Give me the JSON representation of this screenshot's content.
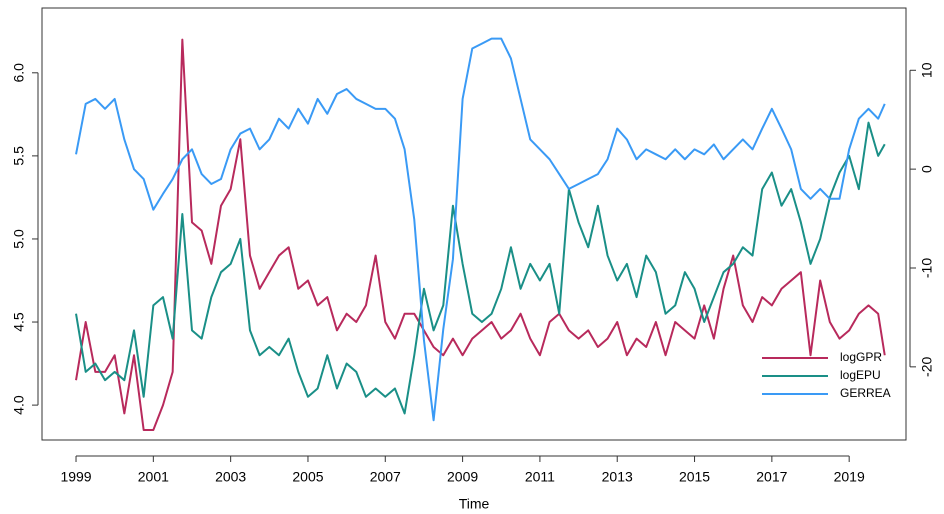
{
  "chart_data": {
    "type": "line",
    "x_label": "Time",
    "x": [
      1999.0,
      1999.25,
      1999.5,
      1999.75,
      2000.0,
      2000.25,
      2000.5,
      2000.75,
      2001.0,
      2001.25,
      2001.5,
      2001.75,
      2002.0,
      2002.25,
      2002.5,
      2002.75,
      2003.0,
      2003.25,
      2003.5,
      2003.75,
      2004.0,
      2004.25,
      2004.5,
      2004.75,
      2005.0,
      2005.25,
      2005.5,
      2005.75,
      2006.0,
      2006.25,
      2006.5,
      2006.75,
      2007.0,
      2007.25,
      2007.5,
      2007.75,
      2008.0,
      2008.25,
      2008.5,
      2008.75,
      2009.0,
      2009.25,
      2009.5,
      2009.75,
      2010.0,
      2010.25,
      2010.5,
      2010.75,
      2011.0,
      2011.25,
      2011.5,
      2011.75,
      2012.0,
      2012.25,
      2012.5,
      2012.75,
      2013.0,
      2013.25,
      2013.5,
      2013.75,
      2014.0,
      2014.25,
      2014.5,
      2014.75,
      2015.0,
      2015.25,
      2015.5,
      2015.75,
      2016.0,
      2016.25,
      2016.5,
      2016.75,
      2017.0,
      2017.25,
      2017.5,
      2017.75,
      2018.0,
      2018.25,
      2018.5,
      2018.75,
      2019.0,
      2019.25,
      2019.5,
      2019.75,
      2019.92
    ],
    "series": [
      {
        "name": "logGPR",
        "color": "#b82a5c",
        "values": [
          4.15,
          4.5,
          4.2,
          4.2,
          4.3,
          3.95,
          4.3,
          3.85,
          3.85,
          4.0,
          4.2,
          6.2,
          5.1,
          5.05,
          4.85,
          5.2,
          5.3,
          5.6,
          4.9,
          4.7,
          4.8,
          4.9,
          4.95,
          4.7,
          4.75,
          4.6,
          4.65,
          4.45,
          4.55,
          4.5,
          4.6,
          4.9,
          4.5,
          4.4,
          4.55,
          4.55,
          4.45,
          4.35,
          4.3,
          4.4,
          4.3,
          4.4,
          4.45,
          4.5,
          4.4,
          4.45,
          4.55,
          4.4,
          4.3,
          4.5,
          4.55,
          4.45,
          4.4,
          4.45,
          4.35,
          4.4,
          4.5,
          4.3,
          4.4,
          4.35,
          4.5,
          4.3,
          4.5,
          4.45,
          4.4,
          4.6,
          4.4,
          4.7,
          4.9,
          4.6,
          4.5,
          4.65,
          4.6,
          4.7,
          4.75,
          4.8,
          4.3,
          4.75,
          4.5,
          4.4,
          4.45,
          4.55,
          4.6,
          4.55,
          4.3
        ]
      },
      {
        "name": "logEPU",
        "color": "#1a8f87",
        "values": [
          4.55,
          4.2,
          4.25,
          4.15,
          4.2,
          4.15,
          4.45,
          4.05,
          4.6,
          4.65,
          4.4,
          5.15,
          4.45,
          4.4,
          4.65,
          4.8,
          4.85,
          5.0,
          4.45,
          4.3,
          4.35,
          4.3,
          4.4,
          4.2,
          4.05,
          4.1,
          4.3,
          4.1,
          4.25,
          4.2,
          4.05,
          4.1,
          4.05,
          4.1,
          3.95,
          4.3,
          4.7,
          4.45,
          4.6,
          5.2,
          4.85,
          4.55,
          4.5,
          4.55,
          4.7,
          4.95,
          4.7,
          4.85,
          4.75,
          4.85,
          4.55,
          5.3,
          5.1,
          4.95,
          5.2,
          4.9,
          4.75,
          4.85,
          4.65,
          4.9,
          4.8,
          4.55,
          4.6,
          4.8,
          4.7,
          4.5,
          4.65,
          4.8,
          4.85,
          4.95,
          4.9,
          5.3,
          5.4,
          5.2,
          5.3,
          5.1,
          4.85,
          5.0,
          5.25,
          5.4,
          5.5,
          5.3,
          5.7,
          5.5,
          5.57
        ]
      },
      {
        "name": "GERREA",
        "color": "#3a9af5",
        "axis": "y2",
        "values": [
          1.5,
          6.6,
          7.1,
          6.1,
          7.1,
          3.0,
          0,
          -1,
          -4.1,
          -2.5,
          -1,
          1,
          2,
          -0.5,
          -1.5,
          -1,
          2,
          3.6,
          4.1,
          2,
          3,
          5.1,
          4.1,
          6.1,
          4.6,
          7.1,
          5.6,
          7.6,
          8.1,
          7.1,
          6.6,
          6.1,
          6.1,
          5.1,
          2,
          -5.1,
          -17.3,
          -25.4,
          -16.2,
          -9.1,
          7.1,
          12.2,
          12.7,
          13.2,
          13.2,
          11.2,
          7.1,
          3,
          2,
          1,
          -0.5,
          -2,
          -1.5,
          -1,
          -0.5,
          1,
          4.1,
          3,
          1,
          2,
          1.5,
          1,
          2,
          1,
          2,
          1.5,
          2.5,
          1,
          2,
          3,
          2,
          4.1,
          6.1,
          4.1,
          2,
          -2,
          -3,
          -2,
          -3,
          -3,
          2,
          5.1,
          6.1,
          5.1,
          6.6
        ]
      }
    ],
    "xlim": [
      1998.12,
      2020.47
    ],
    "xticks": [
      1999,
      2001,
      2003,
      2005,
      2007,
      2009,
      2011,
      2013,
      2015,
      2017,
      2019
    ],
    "ylim": [
      3.79,
      6.39
    ],
    "yticks": [
      {
        "value": 4,
        "label": "4.0"
      },
      {
        "value": 4.5,
        "label": "4.5"
      },
      {
        "value": 5,
        "label": "5.0"
      },
      {
        "value": 5.5,
        "label": "5.5"
      },
      {
        "value": 6,
        "label": "6.0"
      }
    ],
    "y2lim": [
      -27.4,
      16.3
    ],
    "y2ticks": [
      -20,
      -10,
      0,
      10
    ],
    "legend": "bottomright"
  }
}
